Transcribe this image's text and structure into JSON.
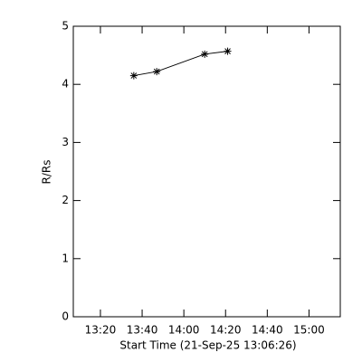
{
  "chart_data": {
    "type": "line",
    "xlabel": "Start Time (21-Sep-25 13:06:26)",
    "ylabel": "R/Rs",
    "x": [
      "13:36",
      "13:47",
      "14:10",
      "14:21"
    ],
    "series": [
      {
        "values": [
          4.15,
          4.22,
          4.52,
          4.57
        ],
        "color": "#000000"
      }
    ],
    "xlim": [
      "13:07",
      "15:15"
    ],
    "xticks": [
      "13:20",
      "13:40",
      "14:00",
      "14:20",
      "14:40",
      "15:00"
    ],
    "ylim": [
      0,
      5
    ],
    "yticks": [
      0,
      1,
      2,
      3,
      4,
      5
    ]
  }
}
